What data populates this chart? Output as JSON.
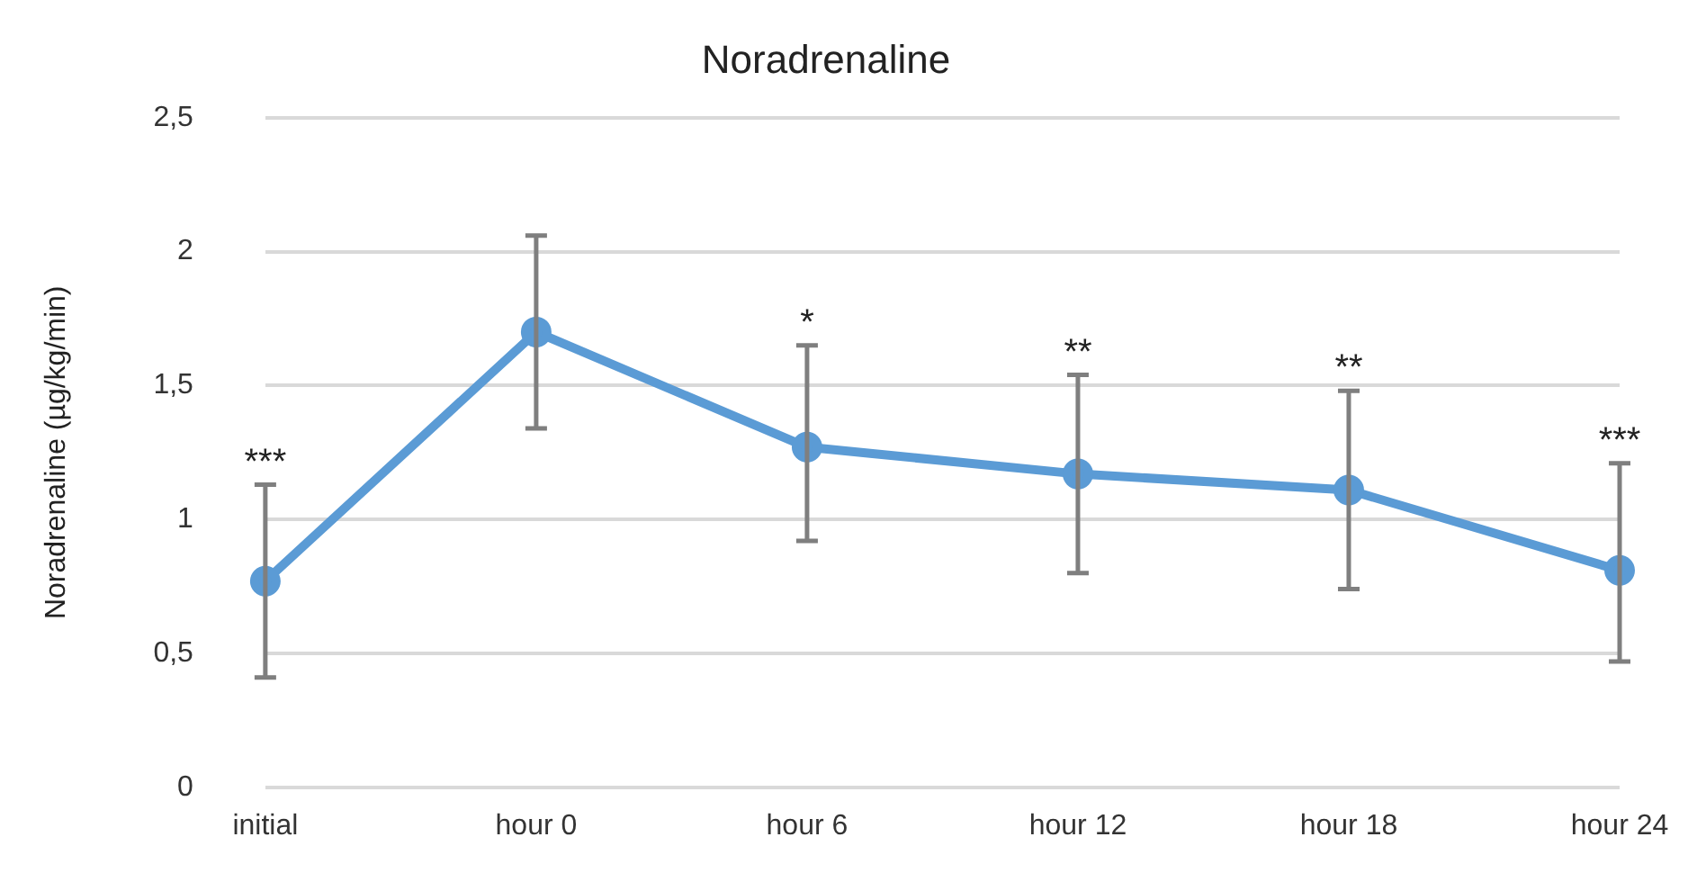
{
  "chart_data": {
    "type": "line",
    "title": "Noradrenaline",
    "ylabel": "Noradrenaline (µg/kg/min)",
    "categories": [
      "initial",
      "hour 0",
      "hour 6",
      "hour 12",
      "hour 18",
      "hour 24"
    ],
    "series": [
      {
        "color": "#5b9bd5",
        "values": [
          0.77,
          1.7,
          1.27,
          1.17,
          1.11,
          0.81
        ],
        "errors": [
          [
            0.41,
            1.13
          ],
          [
            1.34,
            2.06
          ],
          [
            0.92,
            1.65
          ],
          [
            0.8,
            1.54
          ],
          [
            0.74,
            1.48
          ],
          [
            0.47,
            1.21
          ]
        ],
        "value_labels": [
          "***",
          null,
          "*",
          "**",
          "**",
          "***"
        ]
      }
    ],
    "ylim": [
      0,
      2.5
    ],
    "yticks": [
      0,
      {
        "value": 0.5,
        "label": "0,5"
      },
      1,
      {
        "value": 1.5,
        "label": "1,5"
      },
      2,
      {
        "value": 2.5,
        "label": "2,5"
      }
    ],
    "grid": "y",
    "legend": false,
    "marker": "circle",
    "line_style": "solid"
  }
}
